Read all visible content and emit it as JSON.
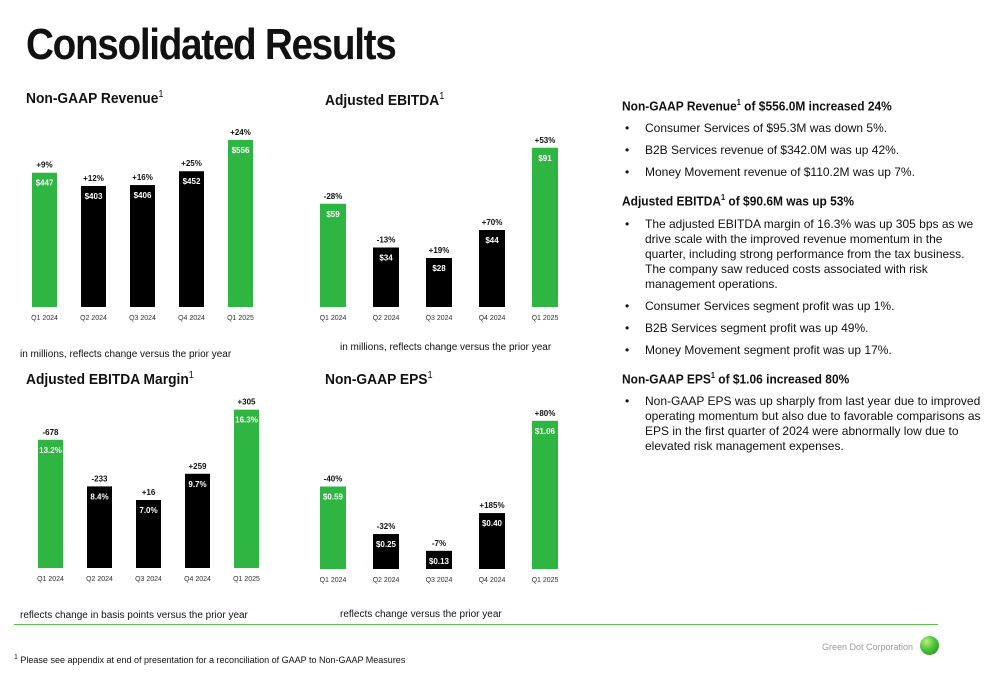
{
  "page": {
    "title": "Consolidated Results",
    "footnote_marker": "1",
    "footnote_text": "Please see appendix at end of presentation for a reconciliation of GAAP to Non-GAAP Measures",
    "brand": "Green Dot Corporation"
  },
  "colors": {
    "green": "#2fb541",
    "black": "#000000",
    "rule": "#5bbf4a"
  },
  "chart_data": [
    {
      "id": "revenue",
      "type": "bar",
      "title": "Non-GAAP Revenue",
      "title_sup": "1",
      "note": "in millions, reflects change versus the prior year",
      "categories": [
        "Q1 2024",
        "Q2 2024",
        "Q3 2024",
        "Q4 2024",
        "Q1 2025"
      ],
      "values": [
        447,
        403,
        406,
        452,
        556
      ],
      "value_labels": [
        "$447",
        "$403",
        "$406",
        "$452",
        "$556"
      ],
      "change_labels": [
        "+9%",
        "+12%",
        "+16%",
        "+25%",
        "+24%"
      ],
      "bar_colors": [
        "#2fb541",
        "#000000",
        "#000000",
        "#000000",
        "#2fb541"
      ],
      "ylim": [
        0,
        556
      ]
    },
    {
      "id": "ebitda",
      "type": "bar",
      "title": "Adjusted EBITDA",
      "title_sup": "1",
      "note": "in millions, reflects change versus the prior year",
      "categories": [
        "Q1 2024",
        "Q2 2024",
        "Q3 2024",
        "Q4 2024",
        "Q1 2025"
      ],
      "values": [
        59,
        34,
        28,
        44,
        91
      ],
      "value_labels": [
        "$59",
        "$34",
        "$28",
        "$44",
        "$91"
      ],
      "change_labels": [
        "-28%",
        "-13%",
        "+19%",
        "+70%",
        "+53%"
      ],
      "bar_colors": [
        "#2fb541",
        "#000000",
        "#000000",
        "#000000",
        "#2fb541"
      ],
      "ylim": [
        0,
        100
      ]
    },
    {
      "id": "margin",
      "type": "bar",
      "title": "Adjusted EBITDA Margin",
      "title_sup": "1",
      "note": "reflects change in basis points versus the prior year",
      "categories": [
        "Q1 2024",
        "Q2 2024",
        "Q3 2024",
        "Q4 2024",
        "Q1 2025"
      ],
      "values": [
        13.2,
        8.4,
        7.0,
        9.7,
        16.3
      ],
      "value_labels": [
        "13.2%",
        "8.4%",
        "7.0%",
        "9.7%",
        "16.3%"
      ],
      "change_labels": [
        "-678",
        "-233",
        "+16",
        "+259",
        "+305"
      ],
      "bar_colors": [
        "#2fb541",
        "#000000",
        "#000000",
        "#000000",
        "#2fb541"
      ],
      "ylim": [
        0,
        17.5
      ]
    },
    {
      "id": "eps",
      "type": "bar",
      "title": "Non-GAAP EPS",
      "title_sup": "1",
      "note": "reflects change versus the prior year",
      "categories": [
        "Q1 2024",
        "Q2 2024",
        "Q3 2024",
        "Q4 2024",
        "Q1 2025"
      ],
      "values": [
        0.59,
        0.25,
        0.13,
        0.4,
        1.06
      ],
      "value_labels": [
        "$0.59",
        "$0.25",
        "$0.13",
        "$0.40",
        "$1.06"
      ],
      "change_labels": [
        "-40%",
        "-32%",
        "-7%",
        "+185%",
        "+80%"
      ],
      "bar_colors": [
        "#2fb541",
        "#000000",
        "#000000",
        "#000000",
        "#2fb541"
      ],
      "ylim": [
        0,
        1.18
      ]
    }
  ],
  "commentary": [
    {
      "head_a": "Non-GAAP Revenue",
      "head_sup": "1",
      "head_b": " of $556.0M increased 24%",
      "bullets": [
        "Consumer Services of $95.3M was down 5%.",
        "B2B Services revenue of $342.0M was up 42%.",
        "Money Movement revenue of $110.2M was up 7%."
      ]
    },
    {
      "head_a": "Adjusted EBITDA",
      "head_sup": "1",
      "head_b": " of $90.6M was up 53%",
      "bullets": [
        "The adjusted EBITDA margin of 16.3% was up 305 bps as we drive scale with the improved revenue momentum in the quarter, including strong performance from the tax business.  The company saw reduced costs associated with risk management operations.",
        "Consumer Services segment profit was up 1%.",
        "B2B Services segment profit was up 49%.",
        "Money Movement segment profit was up 17%."
      ]
    },
    {
      "head_a": "Non-GAAP EPS",
      "head_sup": "1",
      "head_b": " of $1.06 increased 80%",
      "bullets": [
        "Non-GAAP EPS was up sharply from last year due to improved operating momentum but also due to favorable comparisons as EPS in the first quarter of 2024 were abnormally low due to elevated risk management expenses."
      ]
    }
  ],
  "bullet_glyph": "•"
}
